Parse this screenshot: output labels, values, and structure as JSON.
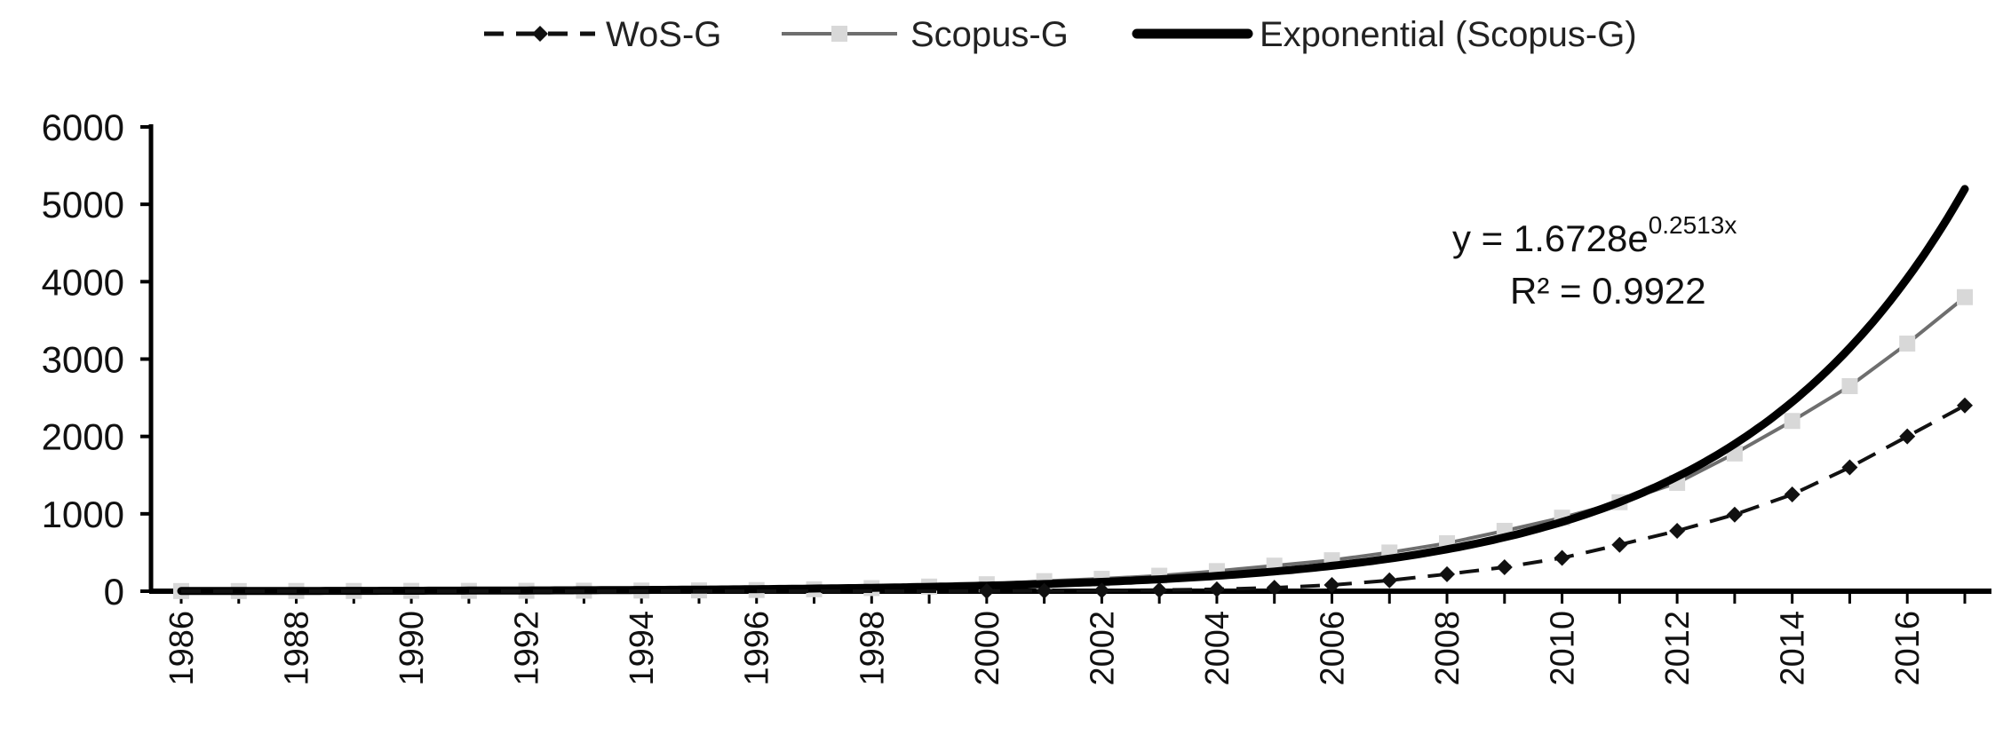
{
  "chart_data": {
    "type": "line",
    "title": "",
    "xlabel": "",
    "ylabel": "",
    "x": [
      1986,
      1987,
      1988,
      1989,
      1990,
      1991,
      1992,
      1993,
      1994,
      1995,
      1996,
      1997,
      1998,
      1999,
      2000,
      2001,
      2002,
      2003,
      2004,
      2005,
      2006,
      2007,
      2008,
      2009,
      2010,
      2011,
      2012,
      2013,
      2014,
      2015,
      2016,
      2017
    ],
    "x_tick_labels": [
      "1986",
      "1988",
      "1990",
      "1992",
      "1994",
      "1996",
      "1998",
      "2000",
      "2002",
      "2004",
      "2006",
      "2008",
      "2010",
      "2012",
      "2014",
      "2016"
    ],
    "ylim": [
      0,
      6000
    ],
    "y_tick_labels": [
      "0",
      "1000",
      "2000",
      "3000",
      "4000",
      "5000",
      "6000"
    ],
    "y_ticks": [
      0,
      1000,
      2000,
      3000,
      4000,
      5000,
      6000
    ],
    "grid": false,
    "legend_position": "top",
    "series": [
      {
        "name": "WoS-G",
        "style": "dashed",
        "marker": "diamond",
        "color": "#111111",
        "values": [
          0,
          0,
          0,
          0,
          0,
          0,
          0,
          0,
          0,
          0,
          0,
          0,
          0,
          0,
          2,
          5,
          8,
          15,
          25,
          45,
          80,
          140,
          220,
          310,
          430,
          600,
          780,
          990,
          1250,
          1600,
          2000,
          2400
        ]
      },
      {
        "name": "Scopus-G",
        "style": "solid",
        "marker": "square",
        "color": "#6e6e6e",
        "marker_color": "#d8d8d8",
        "values": [
          2,
          2,
          3,
          3,
          4,
          4,
          5,
          6,
          8,
          10,
          15,
          25,
          40,
          60,
          90,
          130,
          160,
          200,
          260,
          330,
          400,
          500,
          620,
          780,
          950,
          1150,
          1400,
          1780,
          2200,
          2650,
          3200,
          3800
        ]
      },
      {
        "name": "Exponential (Scopus-G)",
        "style": "solid-thick",
        "color": "#000000",
        "trend": {
          "a": 1.6728,
          "b": 0.2513,
          "x_start": 1986
        }
      }
    ],
    "annotations": {
      "equation_prefix": "y = 1.6728e",
      "equation_exponent": "0.2513x",
      "r_squared": "R² = 0.9922"
    }
  }
}
